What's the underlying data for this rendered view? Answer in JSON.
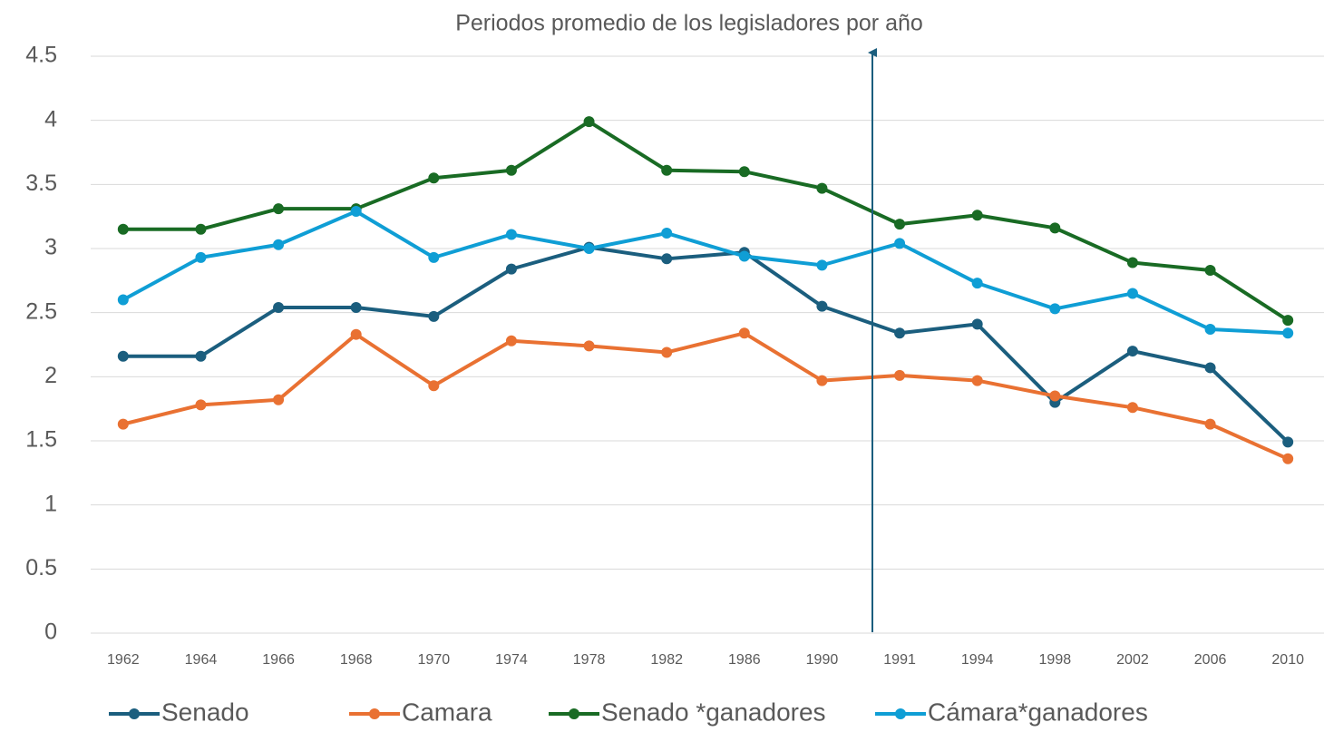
{
  "chart_data": {
    "type": "line",
    "title": "Periodos promedio de los legisladores por año",
    "categories": [
      "1962",
      "1964",
      "1966",
      "1968",
      "1970",
      "1974",
      "1978",
      "1982",
      "1986",
      "1990",
      "1991",
      "1994",
      "1998",
      "2002",
      "2006",
      "2010"
    ],
    "series": [
      {
        "name": "Senado",
        "color": "#1b5e7e",
        "values": [
          2.16,
          2.16,
          2.54,
          2.54,
          2.47,
          2.84,
          3.01,
          2.92,
          2.97,
          2.55,
          2.34,
          2.41,
          1.8,
          2.2,
          2.07,
          1.49
        ]
      },
      {
        "name": "Camara",
        "color": "#e97132",
        "values": [
          1.63,
          1.78,
          1.82,
          2.33,
          1.93,
          2.28,
          2.24,
          2.19,
          2.34,
          1.97,
          2.01,
          1.97,
          1.85,
          1.76,
          1.63,
          1.36
        ]
      },
      {
        "name": "Senado *ganadores",
        "color": "#196b24",
        "values": [
          3.15,
          3.15,
          3.31,
          3.31,
          3.55,
          3.61,
          3.99,
          3.61,
          3.6,
          3.47,
          3.19,
          3.26,
          3.16,
          2.89,
          2.83,
          2.44
        ]
      },
      {
        "name": "Cámara*ganadores",
        "color": "#0f9ed5",
        "values": [
          2.6,
          2.93,
          3.03,
          3.29,
          2.93,
          3.11,
          3.0,
          3.12,
          2.94,
          2.87,
          3.04,
          2.73,
          2.53,
          2.65,
          2.37,
          2.34
        ]
      }
    ],
    "ylim": [
      0,
      4.5
    ],
    "yticks": [
      0,
      0.5,
      1,
      1.5,
      2,
      2.5,
      3,
      3.5,
      4,
      4.5
    ],
    "grid": true,
    "legend": "bottom"
  }
}
